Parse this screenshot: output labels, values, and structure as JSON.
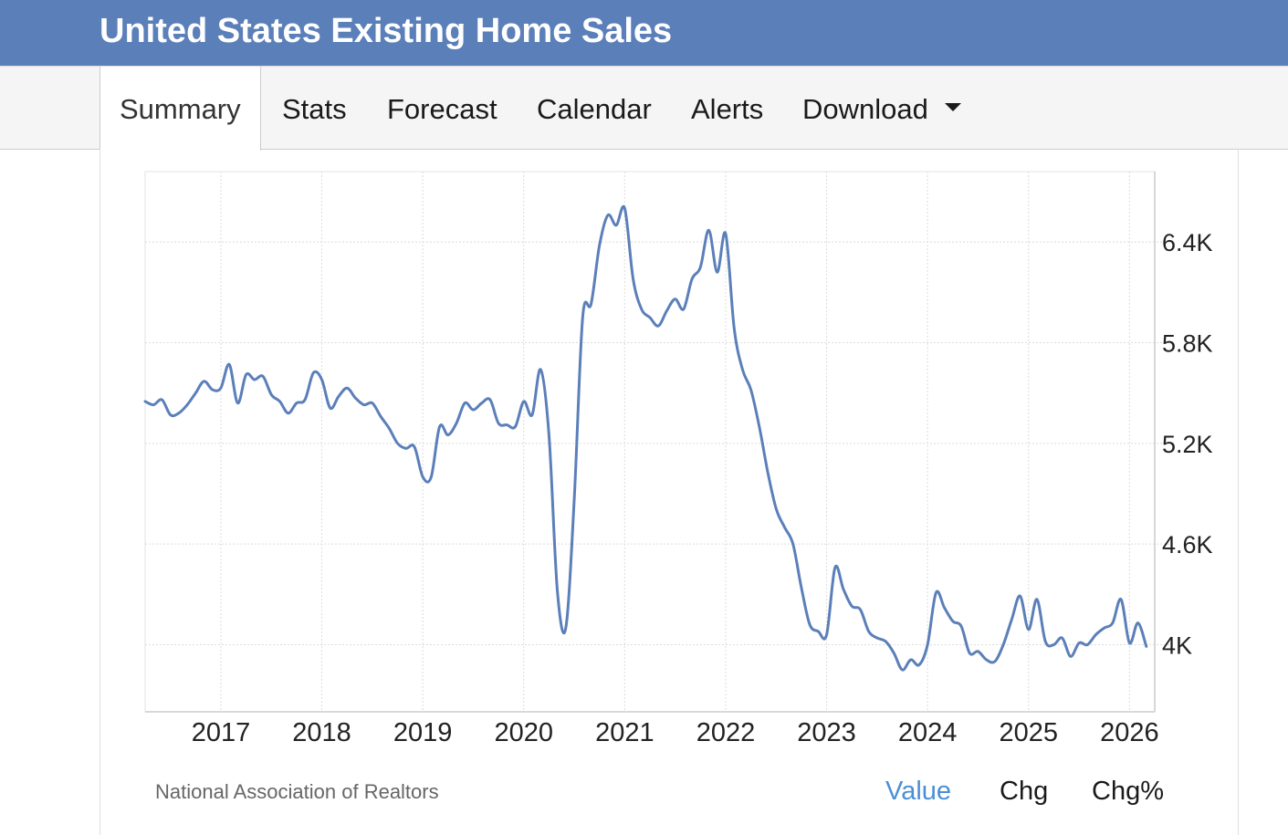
{
  "header": {
    "title": "United States Existing Home Sales"
  },
  "tabs": [
    {
      "label": "Summary",
      "active": true
    },
    {
      "label": "Stats"
    },
    {
      "label": "Forecast"
    },
    {
      "label": "Calendar"
    },
    {
      "label": "Alerts"
    },
    {
      "label": "Download",
      "icon": "caret-down-icon"
    }
  ],
  "footer": {
    "source": "National Association of Realtors",
    "toggles": [
      {
        "label": "Value",
        "selected": true
      },
      {
        "label": "Chg"
      },
      {
        "label": "Chg%"
      }
    ]
  },
  "colors": {
    "header": "#5b7fb9",
    "line": "#5b7fb9",
    "selected_toggle": "#4a8fd6"
  },
  "chart_data": {
    "type": "line",
    "title": "",
    "xlabel": "",
    "ylabel": "",
    "x_ticks": [
      "2017",
      "2018",
      "2019",
      "2020",
      "2021",
      "2022",
      "2023",
      "2024",
      "2025",
      "2026"
    ],
    "y_ticks": [
      {
        "value": 4000,
        "label": "4K"
      },
      {
        "value": 4600,
        "label": "4.6K"
      },
      {
        "value": 5200,
        "label": "5.2K"
      },
      {
        "value": 5800,
        "label": "5.8K"
      },
      {
        "value": 6400,
        "label": "6.4K"
      }
    ],
    "ylim": [
      3600,
      6820
    ],
    "xlim": [
      "2016-04",
      "2026-04"
    ],
    "y_axis_position": "right",
    "grid": true,
    "series": [
      {
        "values": [
          {
            "x": "2016-04",
            "y": 5450
          },
          {
            "x": "2016-05",
            "y": 5430
          },
          {
            "x": "2016-06",
            "y": 5460
          },
          {
            "x": "2016-07",
            "y": 5370
          },
          {
            "x": "2016-08",
            "y": 5380
          },
          {
            "x": "2016-09",
            "y": 5430
          },
          {
            "x": "2016-10",
            "y": 5500
          },
          {
            "x": "2016-11",
            "y": 5570
          },
          {
            "x": "2016-12",
            "y": 5520
          },
          {
            "x": "2017-01",
            "y": 5530
          },
          {
            "x": "2017-02",
            "y": 5670
          },
          {
            "x": "2017-03",
            "y": 5440
          },
          {
            "x": "2017-04",
            "y": 5610
          },
          {
            "x": "2017-05",
            "y": 5580
          },
          {
            "x": "2017-06",
            "y": 5600
          },
          {
            "x": "2017-07",
            "y": 5490
          },
          {
            "x": "2017-08",
            "y": 5450
          },
          {
            "x": "2017-09",
            "y": 5380
          },
          {
            "x": "2017-10",
            "y": 5440
          },
          {
            "x": "2017-11",
            "y": 5460
          },
          {
            "x": "2017-12",
            "y": 5620
          },
          {
            "x": "2018-01",
            "y": 5580
          },
          {
            "x": "2018-02",
            "y": 5410
          },
          {
            "x": "2018-03",
            "y": 5480
          },
          {
            "x": "2018-04",
            "y": 5530
          },
          {
            "x": "2018-05",
            "y": 5470
          },
          {
            "x": "2018-06",
            "y": 5430
          },
          {
            "x": "2018-07",
            "y": 5440
          },
          {
            "x": "2018-08",
            "y": 5360
          },
          {
            "x": "2018-09",
            "y": 5290
          },
          {
            "x": "2018-10",
            "y": 5200
          },
          {
            "x": "2018-11",
            "y": 5170
          },
          {
            "x": "2018-12",
            "y": 5180
          },
          {
            "x": "2019-01",
            "y": 5000
          },
          {
            "x": "2019-02",
            "y": 5000
          },
          {
            "x": "2019-03",
            "y": 5300
          },
          {
            "x": "2019-04",
            "y": 5250
          },
          {
            "x": "2019-05",
            "y": 5320
          },
          {
            "x": "2019-06",
            "y": 5440
          },
          {
            "x": "2019-07",
            "y": 5400
          },
          {
            "x": "2019-08",
            "y": 5440
          },
          {
            "x": "2019-09",
            "y": 5460
          },
          {
            "x": "2019-10",
            "y": 5320
          },
          {
            "x": "2019-11",
            "y": 5310
          },
          {
            "x": "2019-12",
            "y": 5300
          },
          {
            "x": "2020-01",
            "y": 5450
          },
          {
            "x": "2020-02",
            "y": 5370
          },
          {
            "x": "2020-03",
            "y": 5640
          },
          {
            "x": "2020-04",
            "y": 5250
          },
          {
            "x": "2020-05",
            "y": 4320
          },
          {
            "x": "2020-06",
            "y": 4100
          },
          {
            "x": "2020-07",
            "y": 4860
          },
          {
            "x": "2020-08",
            "y": 5950
          },
          {
            "x": "2020-09",
            "y": 6030
          },
          {
            "x": "2020-10",
            "y": 6380
          },
          {
            "x": "2020-11",
            "y": 6560
          },
          {
            "x": "2020-12",
            "y": 6500
          },
          {
            "x": "2021-01",
            "y": 6600
          },
          {
            "x": "2021-02",
            "y": 6180
          },
          {
            "x": "2021-03",
            "y": 6000
          },
          {
            "x": "2021-04",
            "y": 5950
          },
          {
            "x": "2021-05",
            "y": 5900
          },
          {
            "x": "2021-06",
            "y": 5990
          },
          {
            "x": "2021-07",
            "y": 6060
          },
          {
            "x": "2021-08",
            "y": 6000
          },
          {
            "x": "2021-09",
            "y": 6180
          },
          {
            "x": "2021-10",
            "y": 6250
          },
          {
            "x": "2021-11",
            "y": 6470
          },
          {
            "x": "2021-12",
            "y": 6220
          },
          {
            "x": "2022-01",
            "y": 6450
          },
          {
            "x": "2022-02",
            "y": 5890
          },
          {
            "x": "2022-03",
            "y": 5640
          },
          {
            "x": "2022-04",
            "y": 5520
          },
          {
            "x": "2022-05",
            "y": 5300
          },
          {
            "x": "2022-06",
            "y": 5030
          },
          {
            "x": "2022-07",
            "y": 4810
          },
          {
            "x": "2022-08",
            "y": 4700
          },
          {
            "x": "2022-09",
            "y": 4600
          },
          {
            "x": "2022-10",
            "y": 4340
          },
          {
            "x": "2022-11",
            "y": 4120
          },
          {
            "x": "2022-12",
            "y": 4080
          },
          {
            "x": "2023-01",
            "y": 4060
          },
          {
            "x": "2023-02",
            "y": 4460
          },
          {
            "x": "2023-03",
            "y": 4330
          },
          {
            "x": "2023-04",
            "y": 4230
          },
          {
            "x": "2023-05",
            "y": 4210
          },
          {
            "x": "2023-06",
            "y": 4080
          },
          {
            "x": "2023-07",
            "y": 4040
          },
          {
            "x": "2023-08",
            "y": 4020
          },
          {
            "x": "2023-09",
            "y": 3950
          },
          {
            "x": "2023-10",
            "y": 3850
          },
          {
            "x": "2023-11",
            "y": 3910
          },
          {
            "x": "2023-12",
            "y": 3880
          },
          {
            "x": "2024-01",
            "y": 4000
          },
          {
            "x": "2024-02",
            "y": 4310
          },
          {
            "x": "2024-03",
            "y": 4220
          },
          {
            "x": "2024-04",
            "y": 4140
          },
          {
            "x": "2024-05",
            "y": 4110
          },
          {
            "x": "2024-06",
            "y": 3950
          },
          {
            "x": "2024-07",
            "y": 3960
          },
          {
            "x": "2024-08",
            "y": 3910
          },
          {
            "x": "2024-09",
            "y": 3900
          },
          {
            "x": "2024-10",
            "y": 4000
          },
          {
            "x": "2024-11",
            "y": 4150
          },
          {
            "x": "2024-12",
            "y": 4290
          },
          {
            "x": "2025-01",
            "y": 4090
          },
          {
            "x": "2025-02",
            "y": 4270
          },
          {
            "x": "2025-03",
            "y": 4020
          },
          {
            "x": "2025-04",
            "y": 4000
          },
          {
            "x": "2025-05",
            "y": 4040
          },
          {
            "x": "2025-06",
            "y": 3930
          },
          {
            "x": "2025-07",
            "y": 4010
          },
          {
            "x": "2025-08",
            "y": 4000
          },
          {
            "x": "2025-09",
            "y": 4060
          },
          {
            "x": "2025-10",
            "y": 4100
          },
          {
            "x": "2025-11",
            "y": 4130
          },
          {
            "x": "2025-12",
            "y": 4270
          },
          {
            "x": "2026-01",
            "y": 4010
          },
          {
            "x": "2026-02",
            "y": 4130
          },
          {
            "x": "2026-03",
            "y": 3990
          }
        ]
      }
    ]
  }
}
